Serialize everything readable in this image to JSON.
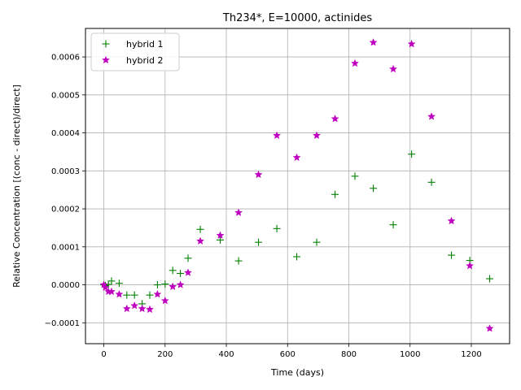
{
  "chart_data": {
    "type": "scatter",
    "title": "Th234*, E=10000, actinides",
    "xlabel": "Time (days)",
    "ylabel": "Relative Concentration [(conc - direct)/direct]",
    "xlim": [
      -60,
      1325
    ],
    "ylim": [
      -0.000155,
      0.000675
    ],
    "xticks": [
      0,
      200,
      400,
      600,
      800,
      1000,
      1200
    ],
    "xtick_labels": [
      "0",
      "200",
      "400",
      "600",
      "800",
      "1000",
      "1200"
    ],
    "yticks": [
      -0.0001,
      0.0,
      0.0001,
      0.0002,
      0.0003,
      0.0004,
      0.0005,
      0.0006
    ],
    "ytick_labels": [
      "−0.0001",
      "0.0000",
      "0.0001",
      "0.0002",
      "0.0003",
      "0.0004",
      "0.0005",
      "0.0006"
    ],
    "grid": true,
    "legend_position": "top-left",
    "series": [
      {
        "name": "hybrid 1",
        "marker": "plus",
        "color": "#008000",
        "x": [
          0,
          5,
          15,
          25,
          50,
          75,
          100,
          125,
          150,
          175,
          200,
          225,
          250,
          275,
          315,
          380,
          440,
          505,
          565,
          630,
          695,
          755,
          820,
          880,
          945,
          1005,
          1070,
          1135,
          1195,
          1260
        ],
        "y": [
          0.0,
          -2e-06,
          1e-06,
          1e-05,
          4e-06,
          -2.7e-05,
          -2.7e-05,
          -5e-05,
          -2.7e-05,
          0.0,
          2e-06,
          3.8e-05,
          3e-05,
          7e-05,
          0.000146,
          0.000118,
          6.3e-05,
          0.000112,
          0.000148,
          7.4e-05,
          0.000112,
          0.000238,
          0.000286,
          0.000254,
          0.000158,
          0.000344,
          0.00027,
          7.8e-05,
          6.4e-05,
          1.6e-05
        ]
      },
      {
        "name": "hybrid 2",
        "marker": "star",
        "color": "#bf00bf",
        "x": [
          0,
          5,
          15,
          25,
          50,
          75,
          100,
          125,
          150,
          175,
          200,
          225,
          250,
          275,
          315,
          380,
          440,
          505,
          565,
          630,
          695,
          755,
          820,
          880,
          945,
          1005,
          1070,
          1135,
          1195,
          1260
        ],
        "y": [
          0.0,
          -7e-06,
          -1.8e-05,
          -1.8e-05,
          -2.5e-05,
          -6.3e-05,
          -5.5e-05,
          -6.3e-05,
          -6.5e-05,
          -2.5e-05,
          -4.2e-05,
          -5e-06,
          0.0,
          3.2e-05,
          0.000115,
          0.00013,
          0.00019,
          0.00029,
          0.000393,
          0.000335,
          0.000393,
          0.000437,
          0.000583,
          0.000638,
          0.000568,
          0.000634,
          0.000443,
          0.000168,
          5e-05,
          -0.000115
        ]
      }
    ]
  }
}
